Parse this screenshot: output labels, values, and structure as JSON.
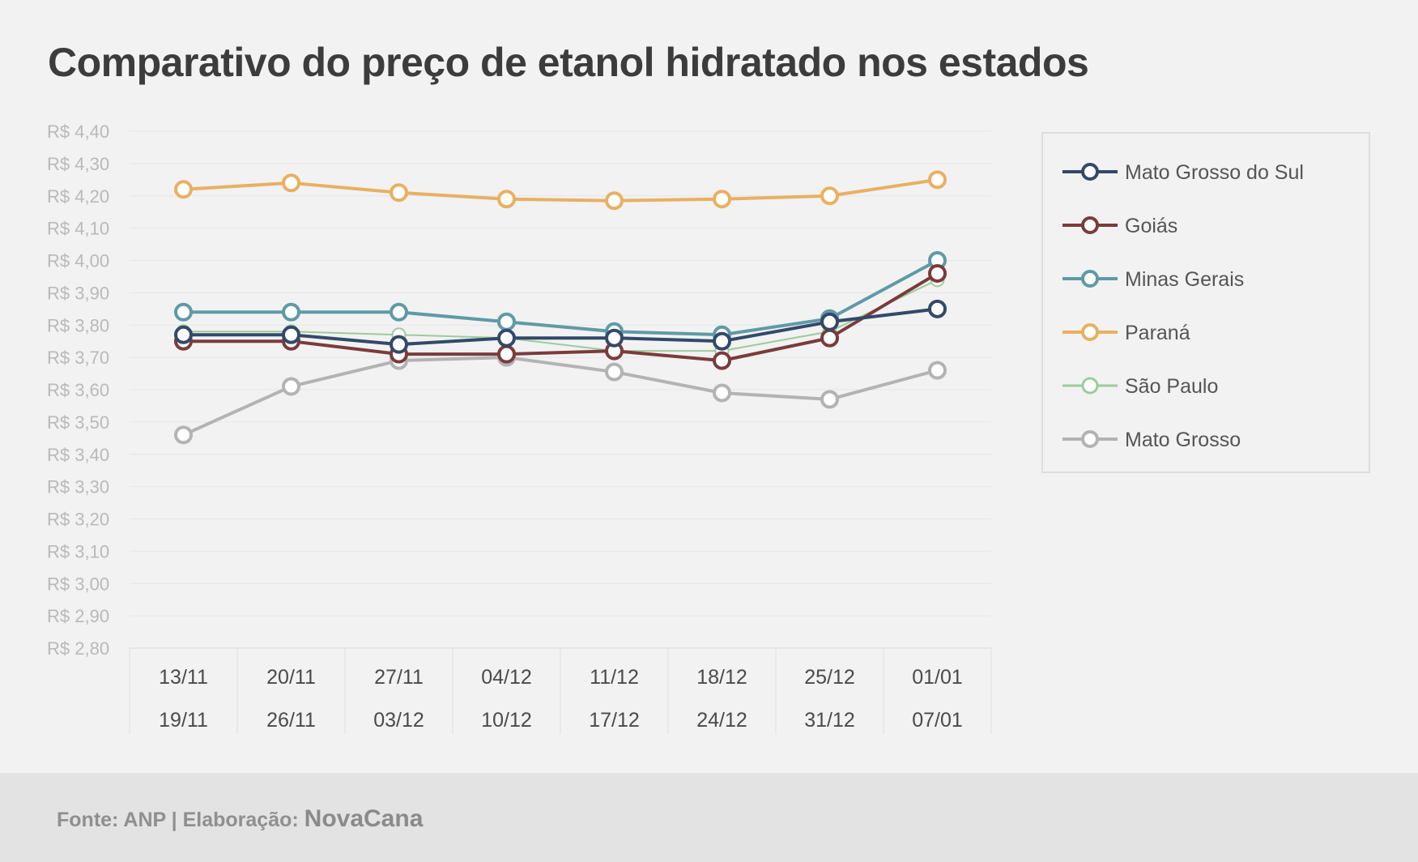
{
  "chart_data": {
    "type": "line",
    "title": "Comparativo do preço de etanol hidratado nos estados",
    "xlabel": "",
    "ylabel": "",
    "ylim": [
      2.8,
      4.4
    ],
    "ytick_step": 0.1,
    "ytick_labels": [
      "R$ 2,80",
      "R$ 2,90",
      "R$ 3,00",
      "R$ 3,10",
      "R$ 3,20",
      "R$ 3,30",
      "R$ 3,40",
      "R$ 3,50",
      "R$ 3,60",
      "R$ 3,70",
      "R$ 3,80",
      "R$ 3,90",
      "R$ 4,00",
      "R$ 4,10",
      "R$ 4,20",
      "R$ 4,30",
      "R$ 4,40"
    ],
    "categories": [
      {
        "start": "13/11",
        "end": "19/11"
      },
      {
        "start": "20/11",
        "end": "26/11"
      },
      {
        "start": "27/11",
        "end": "03/12"
      },
      {
        "start": "04/12",
        "end": "10/12"
      },
      {
        "start": "11/12",
        "end": "17/12"
      },
      {
        "start": "18/12",
        "end": "24/12"
      },
      {
        "start": "25/12",
        "end": "31/12"
      },
      {
        "start": "01/01",
        "end": "07/01"
      }
    ],
    "grid": true,
    "legend_position": "right",
    "series": [
      {
        "name": "Mato Grosso",
        "color": "#b3b3b3",
        "values": [
          3.46,
          3.61,
          3.69,
          3.7,
          3.655,
          3.59,
          3.57,
          3.66
        ]
      },
      {
        "name": "São Paulo",
        "color": "#9ccc9c",
        "values": [
          3.78,
          3.78,
          3.77,
          3.76,
          3.72,
          3.72,
          3.78,
          3.94
        ]
      },
      {
        "name": "Paraná",
        "color": "#e9b061",
        "values": [
          4.22,
          4.24,
          4.21,
          4.19,
          4.185,
          4.19,
          4.2,
          4.25
        ]
      },
      {
        "name": "Minas Gerais",
        "color": "#5f9aa6",
        "values": [
          3.84,
          3.84,
          3.84,
          3.81,
          3.78,
          3.77,
          3.82,
          4.0
        ]
      },
      {
        "name": "Goiás",
        "color": "#7b3b3b",
        "values": [
          3.75,
          3.75,
          3.71,
          3.71,
          3.72,
          3.69,
          3.76,
          3.96
        ]
      },
      {
        "name": "Mato Grosso do Sul",
        "color": "#33496a",
        "values": [
          3.77,
          3.77,
          3.74,
          3.76,
          3.76,
          3.75,
          3.81,
          3.85
        ]
      }
    ],
    "legend_order": [
      "Mato Grosso do Sul",
      "Goiás",
      "Minas Gerais",
      "Paraná",
      "São Paulo",
      "Mato Grosso"
    ]
  },
  "footer": {
    "source": "Fonte: ANP | Elaboração: ",
    "brand": "NovaCana"
  }
}
